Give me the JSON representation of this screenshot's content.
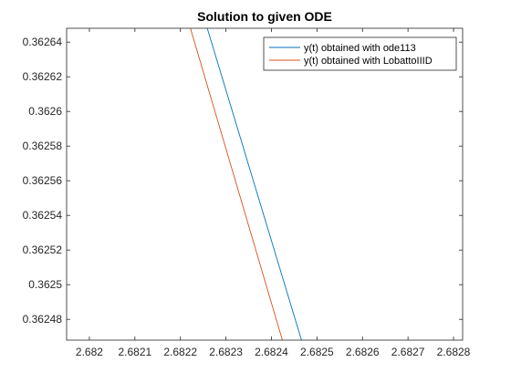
{
  "chart_data": {
    "type": "line",
    "title": "Solution to given ODE",
    "xlabel": "",
    "ylabel": "",
    "xlim": [
      2.68195,
      2.68282
    ],
    "ylim": [
      0.362468,
      0.362648
    ],
    "x_ticks": [
      2.682,
      2.6821,
      2.6822,
      2.6823,
      2.6824,
      2.6825,
      2.6826,
      2.6827,
      2.6828
    ],
    "x_tick_labels": [
      "2.682",
      "2.6821",
      "2.6822",
      "2.6823",
      "2.6824",
      "2.6825",
      "2.6826",
      "2.6827",
      "2.6828"
    ],
    "y_ticks": [
      0.36248,
      0.3625,
      0.36252,
      0.36254,
      0.36256,
      0.36258,
      0.3626,
      0.36262,
      0.36264
    ],
    "y_tick_labels": [
      "0.36248",
      "0.3625",
      "0.36252",
      "0.36254",
      "0.36256",
      "0.36258",
      "0.3626",
      "0.36262",
      "0.36264"
    ],
    "grid": false,
    "legend_position": "top-right",
    "series": [
      {
        "name": "y(t) obtained with ode113",
        "color": "#0072BD",
        "x": [
          2.682259,
          2.682466
        ],
        "y": [
          0.362648,
          0.362468
        ]
      },
      {
        "name": "y(t) obtained with LobattoIIID",
        "color": "#D95319",
        "x": [
          2.682222,
          2.682424
        ],
        "y": [
          0.362648,
          0.362468
        ]
      }
    ]
  }
}
